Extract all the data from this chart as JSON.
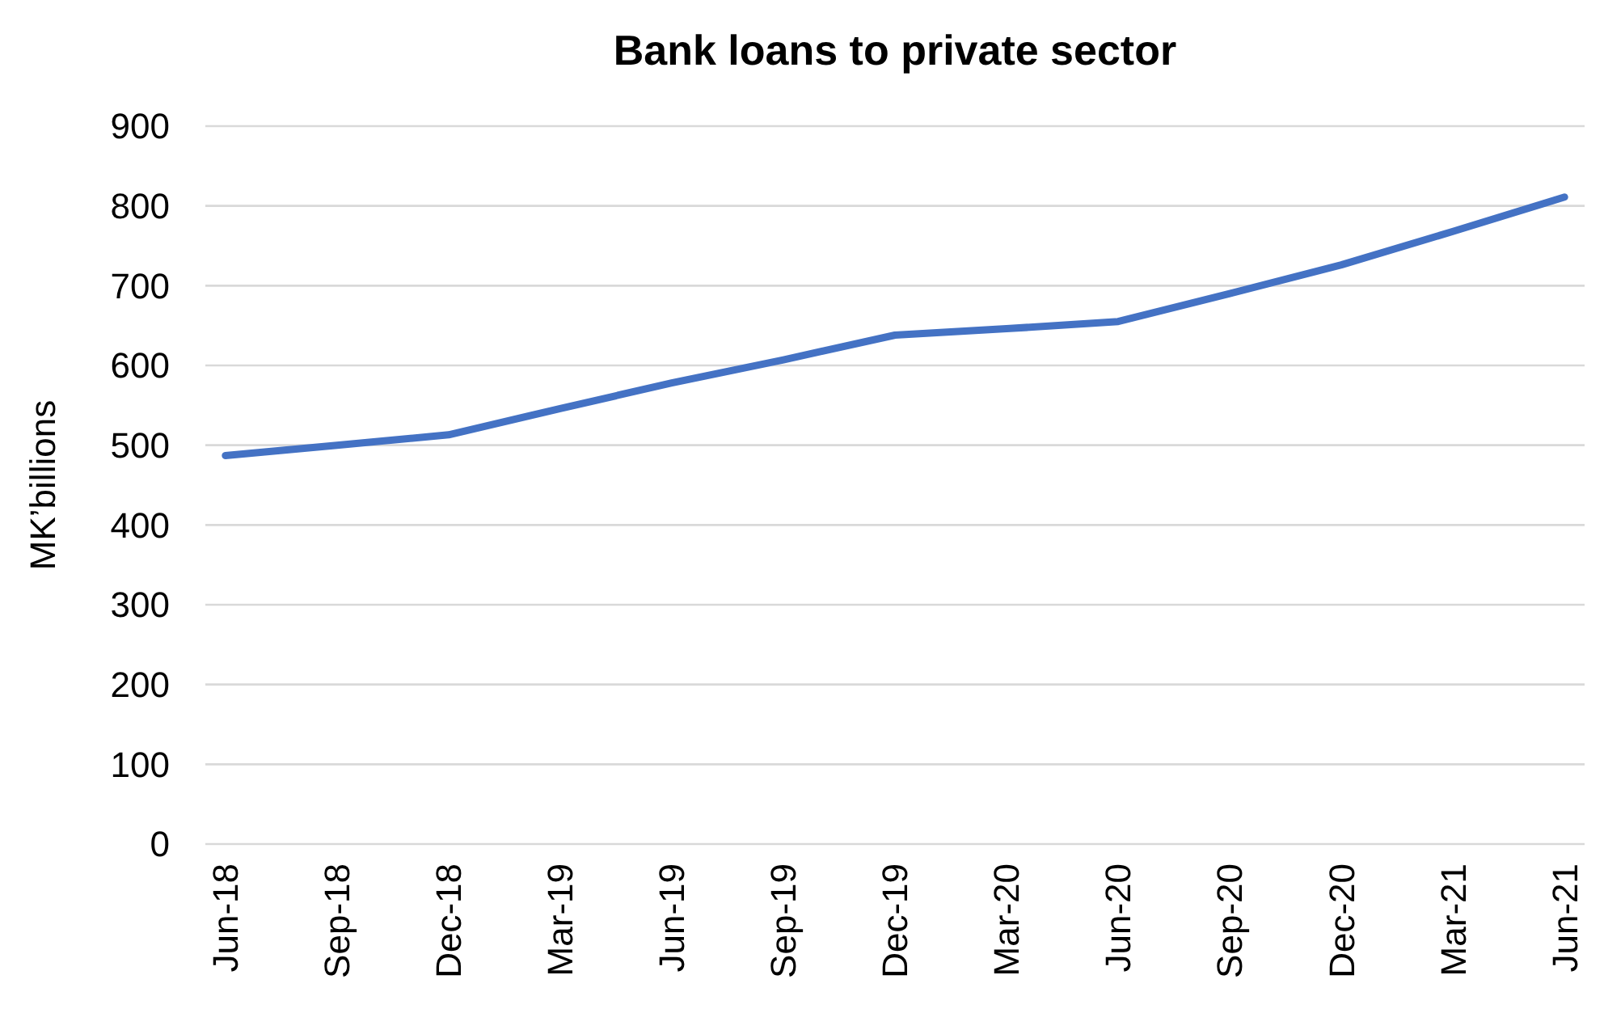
{
  "chart_data": {
    "type": "line",
    "title": "Bank loans to private sector",
    "ylabel": "MK’billions",
    "categories": [
      "Jun-18",
      "Sep-18",
      "Dec-18",
      "Mar-19",
      "Jun-19",
      "Sep-19",
      "Dec-19",
      "Mar-20",
      "Jun-20",
      "Sep-20",
      "Dec-20",
      "Mar-21",
      "Jun-21"
    ],
    "series": [
      {
        "color": "#4472c4",
        "values": [
          487,
          500,
          513,
          546,
          578,
          607,
          638,
          646,
          655,
          690,
          726,
          768,
          811
        ]
      }
    ],
    "ylim": [
      0,
      900
    ],
    "yticks": [
      0,
      100,
      200,
      300,
      400,
      500,
      600,
      700,
      800,
      900
    ],
    "grid": "y",
    "marker": "none",
    "line_style": "solid"
  }
}
